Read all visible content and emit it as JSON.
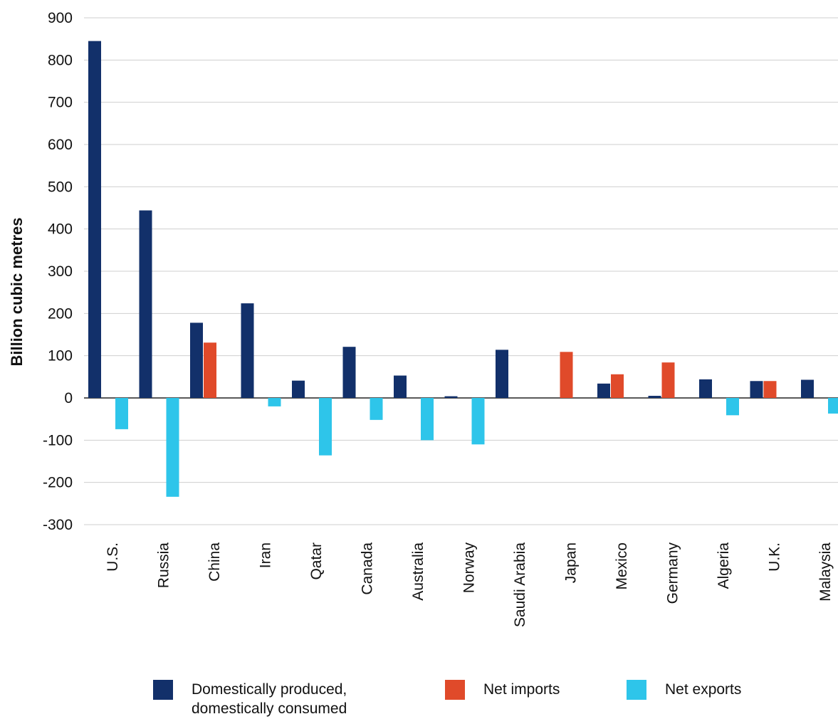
{
  "chart_data": {
    "type": "bar",
    "title": "",
    "xlabel": "",
    "ylabel": "Billion cubic metres",
    "ylim": [
      -300,
      900
    ],
    "yticks": [
      -300,
      -200,
      -100,
      0,
      100,
      200,
      300,
      400,
      500,
      600,
      700,
      800,
      900
    ],
    "grid": true,
    "legend_position": "bottom",
    "categories": [
      "U.S.",
      "Russia",
      "China",
      "Iran",
      "Qatar",
      "Canada",
      "Australia",
      "Norway",
      "Saudi Arabia",
      "Japan",
      "Mexico",
      "Germany",
      "Algeria",
      "U.K.",
      "Malaysia"
    ],
    "series": [
      {
        "name": "Domestically produced, domestically consumed",
        "color": "#12306a",
        "values": [
          845,
          444,
          178,
          224,
          41,
          121,
          53,
          4,
          114,
          0,
          34,
          5,
          44,
          40,
          43
        ]
      },
      {
        "name": "Net imports",
        "color": "#e04a2a",
        "values": [
          0,
          0,
          131,
          0,
          0,
          0,
          0,
          0,
          0,
          109,
          56,
          84,
          0,
          40,
          0
        ]
      },
      {
        "name": "Net exports",
        "color": "#2ec5ea",
        "values": [
          -74,
          -234,
          0,
          -20,
          -136,
          -52,
          -100,
          -110,
          0,
          0,
          0,
          0,
          -41,
          0,
          -37
        ]
      }
    ]
  },
  "legend": {
    "items": [
      {
        "lines": [
          "Domestically produced,",
          "domestically consumed"
        ]
      },
      {
        "lines": [
          "Net imports"
        ]
      },
      {
        "lines": [
          "Net exports"
        ]
      }
    ]
  }
}
